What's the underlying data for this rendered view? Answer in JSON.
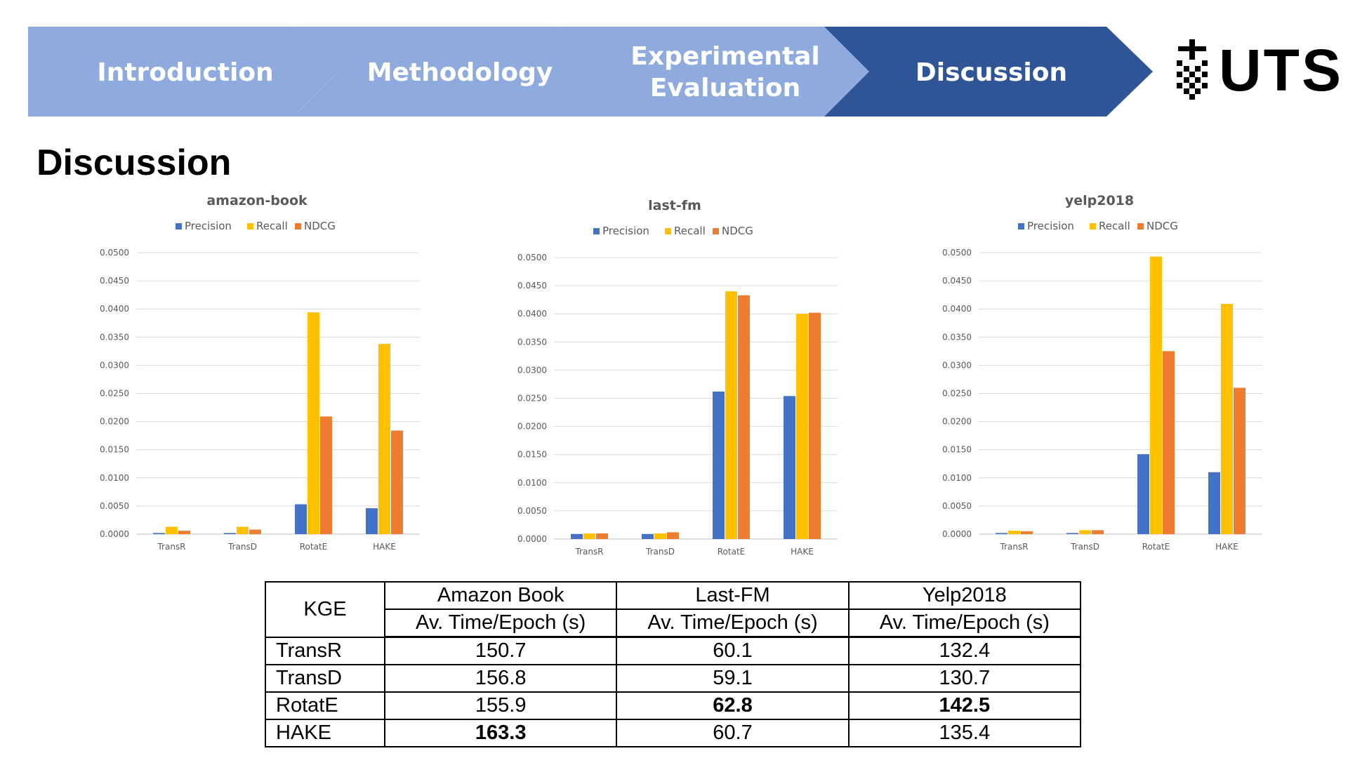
{
  "nav": {
    "steps": [
      {
        "label_line1": "Introduction",
        "label_line2": "",
        "active": false
      },
      {
        "label_line1": "Methodology",
        "label_line2": "",
        "active": false
      },
      {
        "label_line1": "Experimental",
        "label_line2": "Evaluation",
        "active": false
      },
      {
        "label_line1": "Discussion",
        "label_line2": "",
        "active": true
      }
    ],
    "colors": {
      "inactive": "#8FAADC",
      "active": "#2F5597",
      "text": "#FFFFFF"
    }
  },
  "logo": {
    "text": "UTS"
  },
  "page_title": "Discussion",
  "series_colors": {
    "Precision": "#4472C4",
    "Recall": "#FFC000",
    "NDCG": "#ED7D31"
  },
  "chart_data": [
    {
      "type": "bar",
      "title": "amazon-book",
      "categories": [
        "TransR",
        "TransD",
        "RotatE",
        "HAKE"
      ],
      "series": [
        {
          "name": "Precision",
          "values": [
            0.0002,
            0.0002,
            0.0053,
            0.0046
          ]
        },
        {
          "name": "Recall",
          "values": [
            0.0013,
            0.0013,
            0.0394,
            0.0338
          ]
        },
        {
          "name": "NDCG",
          "values": [
            0.0006,
            0.0008,
            0.0209,
            0.0184
          ]
        }
      ],
      "ylim": [
        0,
        0.05
      ],
      "yticks": [
        "0.0000",
        "0.0050",
        "0.0100",
        "0.0150",
        "0.0200",
        "0.0250",
        "0.0300",
        "0.0350",
        "0.0400",
        "0.0450",
        "0.0500"
      ],
      "grid": true,
      "legend": "top"
    },
    {
      "type": "bar",
      "title": "last-fm",
      "categories": [
        "TransR",
        "TransD",
        "RotatE",
        "HAKE"
      ],
      "series": [
        {
          "name": "Precision",
          "values": [
            0.0009,
            0.0009,
            0.0262,
            0.0254
          ]
        },
        {
          "name": "Recall",
          "values": [
            0.001,
            0.001,
            0.044,
            0.04
          ]
        },
        {
          "name": "NDCG",
          "values": [
            0.001,
            0.0012,
            0.0433,
            0.0402
          ]
        }
      ],
      "ylim": [
        0,
        0.05
      ],
      "yticks": [
        "0.0000",
        "0.0050",
        "0.0100",
        "0.0150",
        "0.0200",
        "0.0250",
        "0.0300",
        "0.0350",
        "0.0400",
        "0.0450",
        "0.0500"
      ],
      "grid": true,
      "legend": "top"
    },
    {
      "type": "bar",
      "title": "yelp2018",
      "categories": [
        "TransR",
        "TransD",
        "RotatE",
        "HAKE"
      ],
      "series": [
        {
          "name": "Precision",
          "values": [
            0.0002,
            0.0002,
            0.0142,
            0.011
          ]
        },
        {
          "name": "Recall",
          "values": [
            0.0006,
            0.0007,
            0.0493,
            0.0409
          ]
        },
        {
          "name": "NDCG",
          "values": [
            0.0005,
            0.0007,
            0.0325,
            0.026
          ]
        }
      ],
      "ylim": [
        0,
        0.05
      ],
      "yticks": [
        "0.0000",
        "0.0050",
        "0.0100",
        "0.0150",
        "0.0200",
        "0.0250",
        "0.0300",
        "0.0350",
        "0.0400",
        "0.0450",
        "0.0500"
      ],
      "grid": true,
      "legend": "top"
    }
  ],
  "time_table": {
    "corner": "KGE",
    "datasets": [
      "Amazon Book",
      "Last-FM",
      "Yelp2018"
    ],
    "metric": "Av. Time/Epoch (s)",
    "rows": [
      {
        "model": "TransR",
        "values": [
          "150.7",
          "60.1",
          "132.4"
        ],
        "bold": [
          false,
          false,
          false
        ]
      },
      {
        "model": "TransD",
        "values": [
          "156.8",
          "59.1",
          "130.7"
        ],
        "bold": [
          false,
          false,
          false
        ]
      },
      {
        "model": "RotatE",
        "values": [
          "155.9",
          "62.8",
          "142.5"
        ],
        "bold": [
          false,
          true,
          true
        ]
      },
      {
        "model": "HAKE",
        "values": [
          "163.3",
          "60.7",
          "135.4"
        ],
        "bold": [
          true,
          false,
          false
        ]
      }
    ]
  }
}
